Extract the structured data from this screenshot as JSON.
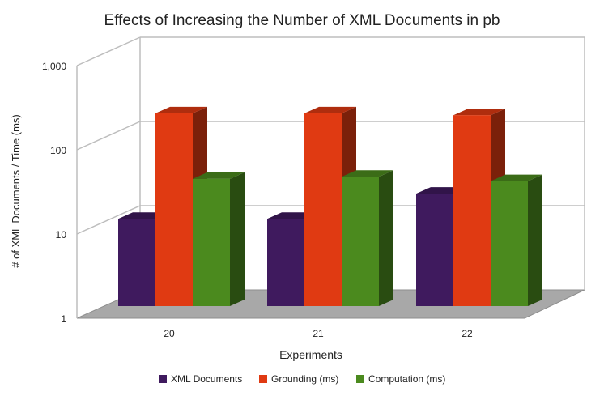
{
  "chart_data": {
    "type": "bar",
    "title": "Effects of Increasing the Number of XML Documents in pb",
    "xlabel": "Experiments",
    "ylabel": "# of XML Documents / Time (ms)",
    "yscale": "log",
    "ylim": [
      1,
      1000
    ],
    "yticks": [
      1,
      10,
      100,
      1000
    ],
    "ytick_labels": [
      "1",
      "10",
      "100",
      "1,000"
    ],
    "categories": [
      "20",
      "21",
      "22"
    ],
    "series": [
      {
        "name": "XML Documents",
        "values": [
          11,
          11,
          22
        ]
      },
      {
        "name": "Grounding (ms)",
        "values": [
          200,
          200,
          190
        ]
      },
      {
        "name": "Computation (ms)",
        "values": [
          33,
          35,
          31
        ]
      }
    ],
    "legend_position": "bottom",
    "grid": true,
    "colors": {
      "series": [
        "#3f1a5e",
        "#e03a12",
        "#4b8a1e"
      ],
      "floor": "#a8a8a8",
      "grid": "#bdbdbd"
    }
  }
}
